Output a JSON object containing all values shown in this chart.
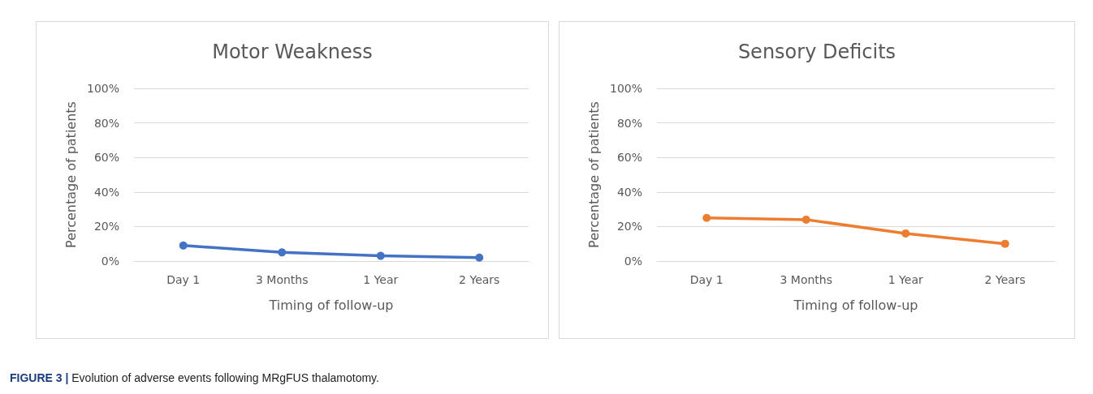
{
  "chart_data": [
    {
      "type": "line",
      "title": "Motor Weakness",
      "xlabel": "Timing of follow-up",
      "ylabel": "Percentage of patients",
      "categories": [
        "Day 1",
        "3 Months",
        "1 Year",
        "2 Years"
      ],
      "series": [
        {
          "color": "#4472c4",
          "values": [
            9,
            5,
            3,
            2
          ]
        }
      ],
      "ylim": [
        0,
        100
      ],
      "yticks": [
        {
          "value": 0,
          "label": "0%"
        },
        {
          "value": 20,
          "label": "20%"
        },
        {
          "value": 40,
          "label": "40%"
        },
        {
          "value": 60,
          "label": "60%"
        },
        {
          "value": 80,
          "label": "80%"
        },
        {
          "value": 100,
          "label": "100%"
        }
      ],
      "grid": "y",
      "marker": "circle",
      "line_style": "solid",
      "annotations": [
        "FIGURE 3 | Evolution of adverse events following MRgFUS thalamotomy."
      ]
    },
    {
      "type": "line",
      "title": "Sensory Deficits",
      "xlabel": "Timing of follow-up",
      "ylabel": "Percentage of patients",
      "categories": [
        "Day 1",
        "3 Months",
        "1 Year",
        "2 Years"
      ],
      "series": [
        {
          "color": "#ed7d31",
          "values": [
            25,
            24,
            16,
            10
          ]
        }
      ],
      "ylim": [
        0,
        100
      ],
      "yticks": [
        {
          "value": 0,
          "label": "0%"
        },
        {
          "value": 20,
          "label": "20%"
        },
        {
          "value": 40,
          "label": "40%"
        },
        {
          "value": 60,
          "label": "60%"
        },
        {
          "value": 80,
          "label": "80%"
        },
        {
          "value": 100,
          "label": "100%"
        }
      ],
      "grid": "y",
      "marker": "circle",
      "line_style": "solid"
    }
  ]
}
